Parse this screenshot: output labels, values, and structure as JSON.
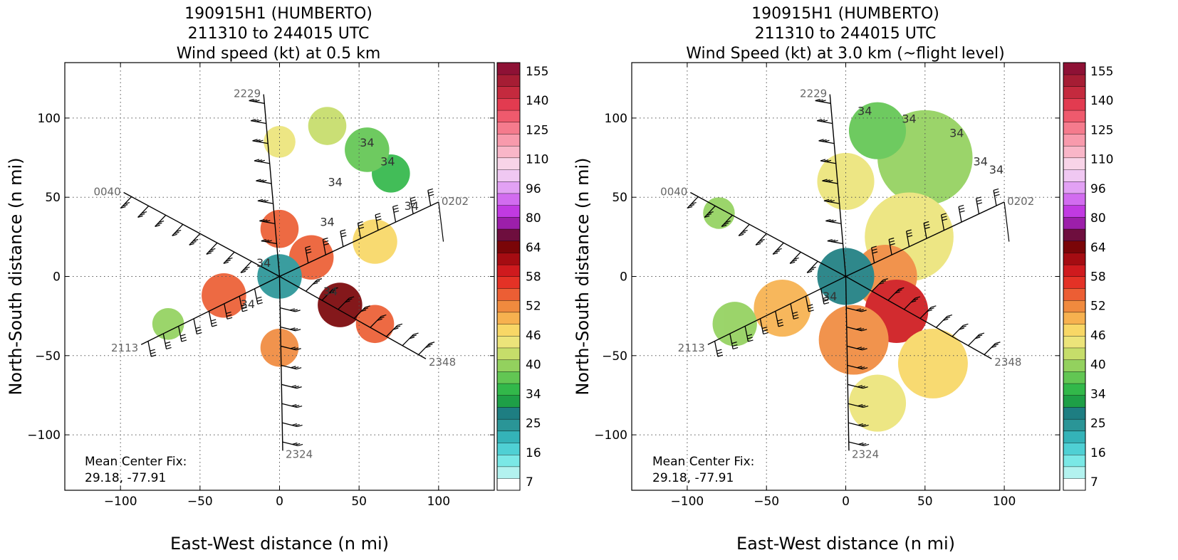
{
  "chart_data": [
    {
      "type": "heatmap",
      "title_lines": [
        "190915H1 (HUMBERTO)",
        "211310 to 244015 UTC",
        "Wind speed (kt) at 0.5 km"
      ],
      "xlabel": "East-West distance (n mi)",
      "ylabel": "North-South distance (n mi)",
      "xlim": [
        -135,
        135
      ],
      "ylim": [
        -135,
        135
      ],
      "xticks": [
        -100,
        -50,
        0,
        50,
        100
      ],
      "yticks": [
        -100,
        -50,
        0,
        50,
        100
      ],
      "grid": true,
      "colorbar_ticks": [
        7,
        16,
        25,
        34,
        40,
        46,
        52,
        58,
        64,
        80,
        96,
        110,
        125,
        140,
        155
      ],
      "mean_center_fix": {
        "label": "Mean Center Fix:",
        "value": "29.18, -77.91"
      },
      "legs": [
        {
          "label": "2229",
          "x": -10,
          "y": 115
        },
        {
          "label": "0040",
          "x": -98,
          "y": 53
        },
        {
          "label": "0202",
          "x": 100,
          "y": 47
        },
        {
          "label": "2113",
          "x": -87,
          "y": -43
        },
        {
          "label": "2348",
          "x": 92,
          "y": -52
        },
        {
          "label": "2324",
          "x": 2,
          "y": -110
        }
      ],
      "contour_labels": [
        "34",
        "34",
        "34",
        "34",
        "34",
        "34",
        "34",
        "34"
      ],
      "wind_field_kt": [
        {
          "x": 70,
          "y": 65,
          "r": 12,
          "value": 33
        },
        {
          "x": 55,
          "y": 80,
          "r": 14,
          "value": 36
        },
        {
          "x": 30,
          "y": 95,
          "r": 12,
          "value": 40
        },
        {
          "x": 0,
          "y": 85,
          "r": 10,
          "value": 44
        },
        {
          "x": 0,
          "y": 30,
          "r": 12,
          "value": 57
        },
        {
          "x": 20,
          "y": 12,
          "r": 14,
          "value": 57
        },
        {
          "x": 60,
          "y": 22,
          "r": 14,
          "value": 46
        },
        {
          "x": 38,
          "y": -18,
          "r": 14,
          "value": 68
        },
        {
          "x": 60,
          "y": -30,
          "r": 12,
          "value": 55
        },
        {
          "x": -35,
          "y": -12,
          "r": 14,
          "value": 57
        },
        {
          "x": -70,
          "y": -30,
          "r": 10,
          "value": 38
        },
        {
          "x": 0,
          "y": -45,
          "r": 12,
          "value": 53
        },
        {
          "x": 0,
          "y": 0,
          "r": 14,
          "value": 24
        }
      ]
    },
    {
      "type": "heatmap",
      "title_lines": [
        "190915H1 (HUMBERTO)",
        "211310 to 244015 UTC",
        "Wind Speed (kt) at 3.0 km (~flight level)"
      ],
      "xlabel": "East-West distance (n mi)",
      "ylabel": "North-South distance (n mi)",
      "xlim": [
        -135,
        135
      ],
      "ylim": [
        -135,
        135
      ],
      "xticks": [
        -100,
        -50,
        0,
        50,
        100
      ],
      "yticks": [
        -100,
        -50,
        0,
        50,
        100
      ],
      "grid": true,
      "colorbar_ticks": [
        7,
        16,
        25,
        34,
        40,
        46,
        52,
        58,
        64,
        80,
        96,
        110,
        125,
        140,
        155
      ],
      "mean_center_fix": {
        "label": "Mean Center Fix:",
        "value": "29.18, -77.91"
      },
      "legs": [
        {
          "label": "2229",
          "x": -10,
          "y": 115
        },
        {
          "label": "0040",
          "x": -98,
          "y": 53
        },
        {
          "label": "0202",
          "x": 100,
          "y": 47
        },
        {
          "label": "2113",
          "x": -87,
          "y": -43
        },
        {
          "label": "2348",
          "x": 92,
          "y": -52
        },
        {
          "label": "2324",
          "x": 2,
          "y": -110
        }
      ],
      "contour_labels": [
        "34",
        "34",
        "34",
        "34",
        "34",
        "34"
      ],
      "wind_field_kt": [
        {
          "x": 50,
          "y": 75,
          "r": 30,
          "value": 37
        },
        {
          "x": 20,
          "y": 92,
          "r": 18,
          "value": 36
        },
        {
          "x": 0,
          "y": 60,
          "r": 18,
          "value": 44
        },
        {
          "x": 40,
          "y": 25,
          "r": 28,
          "value": 45
        },
        {
          "x": 25,
          "y": 0,
          "r": 20,
          "value": 52
        },
        {
          "x": 32,
          "y": -22,
          "r": 20,
          "value": 62
        },
        {
          "x": 5,
          "y": -40,
          "r": 22,
          "value": 54
        },
        {
          "x": 55,
          "y": -55,
          "r": 22,
          "value": 46
        },
        {
          "x": 20,
          "y": -80,
          "r": 18,
          "value": 44
        },
        {
          "x": -40,
          "y": -20,
          "r": 18,
          "value": 50
        },
        {
          "x": -70,
          "y": -30,
          "r": 14,
          "value": 38
        },
        {
          "x": -80,
          "y": 40,
          "r": 10,
          "value": 38
        },
        {
          "x": 0,
          "y": 0,
          "r": 18,
          "value": 25
        }
      ]
    }
  ]
}
